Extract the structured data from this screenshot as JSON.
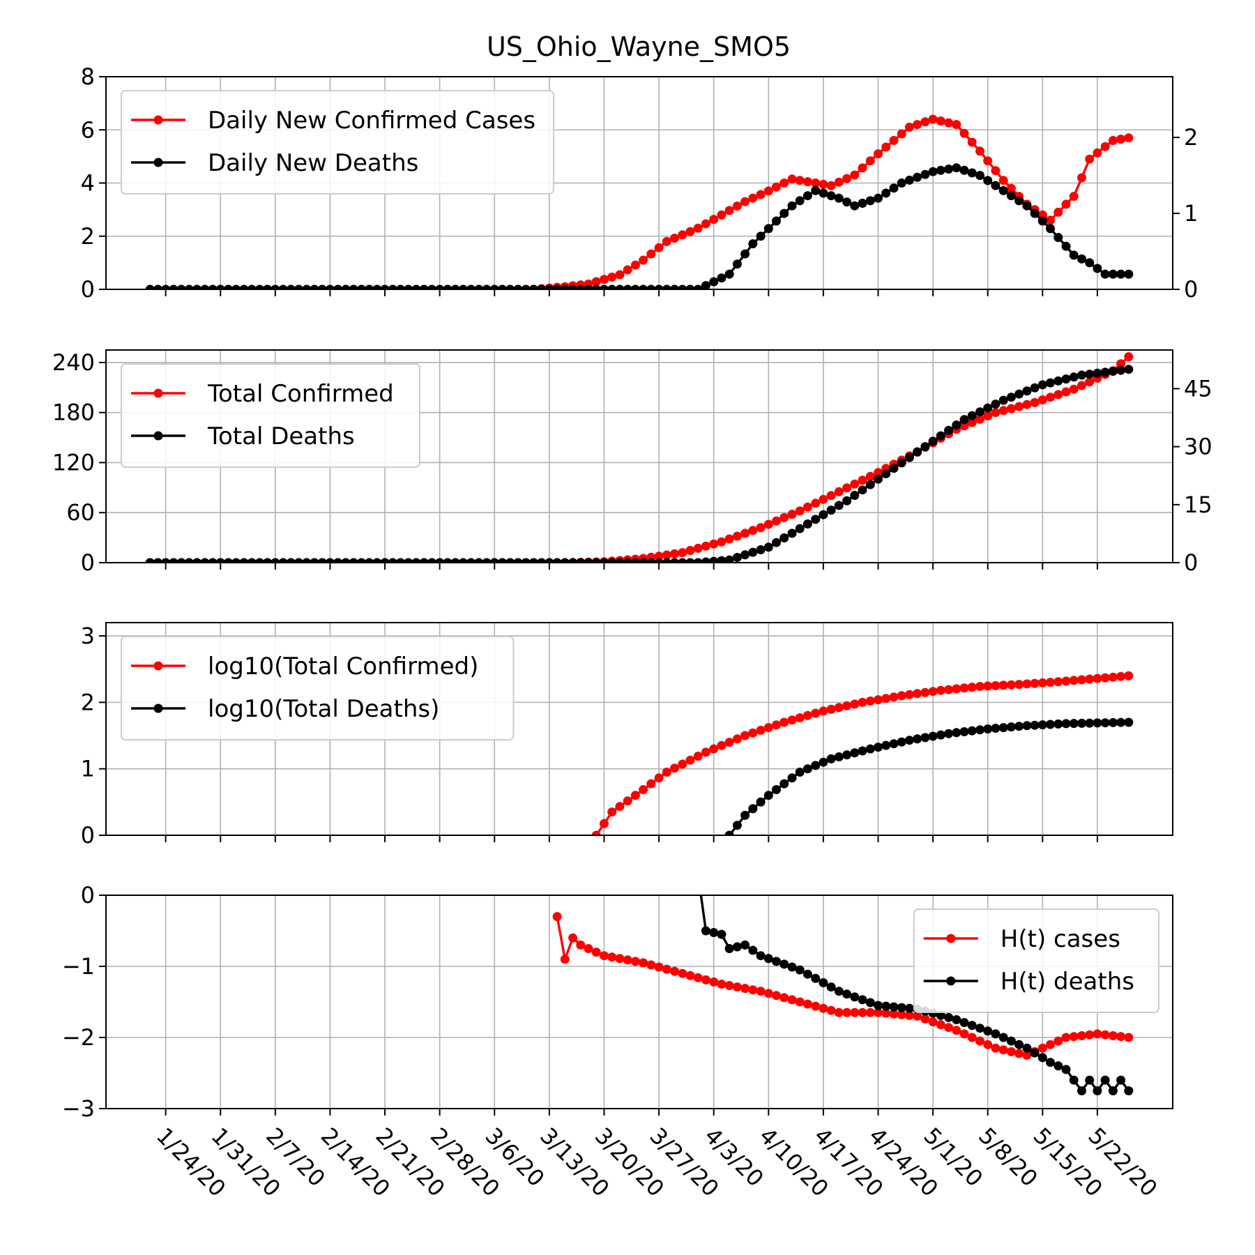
{
  "colors": {
    "cases": "#ff0000",
    "deaths": "#000000",
    "grid": "#b0b0b0"
  },
  "chart_data": {
    "title": "US_Ohio_Wayne_SMO5",
    "type": "line",
    "x_start": "1/22/20",
    "x_end": "5/26/20",
    "x_ticks": [
      "1/24/20",
      "1/31/20",
      "2/7/20",
      "2/14/20",
      "2/21/20",
      "2/28/20",
      "3/6/20",
      "3/13/20",
      "3/20/20",
      "3/27/20",
      "4/3/20",
      "4/10/20",
      "4/17/20",
      "4/24/20",
      "5/1/20",
      "5/8/20",
      "5/15/20",
      "5/22/20"
    ],
    "panels": [
      {
        "name": "daily",
        "ylim_left": [
          0,
          8
        ],
        "yticks_left": [
          0,
          2,
          4,
          6,
          8
        ],
        "ylim_right": [
          0,
          2.8
        ],
        "yticks_right": [
          0,
          1,
          2
        ],
        "legend_position": "upper-left",
        "series": [
          {
            "name": "Daily New Confirmed Cases",
            "axis": "left",
            "color": "#ff0000",
            "points": [
              [
                "3/11/20",
                0
              ],
              [
                "3/15/20",
                0.1
              ],
              [
                "3/18/20",
                0.2
              ],
              [
                "3/22/20",
                0.55
              ],
              [
                "3/25/20",
                1.1
              ],
              [
                "3/28/20",
                1.8
              ],
              [
                "4/1/20",
                2.3
              ],
              [
                "4/4/20",
                2.8
              ],
              [
                "4/7/20",
                3.3
              ],
              [
                "4/10/20",
                3.7
              ],
              [
                "4/13/20",
                4.15
              ],
              [
                "4/16/20",
                4.0
              ],
              [
                "4/18/20",
                3.9
              ],
              [
                "4/21/20",
                4.3
              ],
              [
                "4/24/20",
                5.1
              ],
              [
                "4/28/20",
                6.1
              ],
              [
                "5/1/20",
                6.4
              ],
              [
                "5/4/20",
                6.2
              ],
              [
                "5/7/20",
                5.2
              ],
              [
                "5/10/20",
                4.1
              ],
              [
                "5/13/20",
                3.2
              ],
              [
                "5/16/20",
                2.6
              ],
              [
                "5/19/20",
                3.5
              ],
              [
                "5/21/20",
                4.9
              ],
              [
                "5/24/20",
                5.6
              ],
              [
                "5/26/20",
                5.7
              ]
            ]
          },
          {
            "name": "Daily New Deaths",
            "axis": "right",
            "color": "#000000",
            "points": [
              [
                "1/22/20",
                0
              ],
              [
                "4/1/20",
                0
              ],
              [
                "4/3/20",
                0.1
              ],
              [
                "4/5/20",
                0.2
              ],
              [
                "4/8/20",
                0.6
              ],
              [
                "4/10/20",
                0.8
              ],
              [
                "4/13/20",
                1.1
              ],
              [
                "4/16/20",
                1.3
              ],
              [
                "4/19/20",
                1.2
              ],
              [
                "4/21/20",
                1.1
              ],
              [
                "4/24/20",
                1.2
              ],
              [
                "4/27/20",
                1.4
              ],
              [
                "5/1/20",
                1.55
              ],
              [
                "5/4/20",
                1.6
              ],
              [
                "5/7/20",
                1.5
              ],
              [
                "5/10/20",
                1.3
              ],
              [
                "5/13/20",
                1.1
              ],
              [
                "5/16/20",
                0.8
              ],
              [
                "5/19/20",
                0.45
              ],
              [
                "5/21/20",
                0.35
              ],
              [
                "5/23/20",
                0.2
              ],
              [
                "5/26/20",
                0.2
              ]
            ]
          }
        ]
      },
      {
        "name": "totals",
        "ylim_left": [
          0,
          255
        ],
        "yticks_left": [
          0,
          60,
          120,
          180,
          240
        ],
        "ylim_right": [
          0,
          55
        ],
        "yticks_right": [
          0,
          15,
          30,
          45
        ],
        "legend_position": "upper-left",
        "series": [
          {
            "name": "Total Confirmed",
            "axis": "left",
            "color": "#ff0000",
            "points": [
              [
                "1/22/20",
                0
              ],
              [
                "3/15/20",
                0
              ],
              [
                "3/20/20",
                1
              ],
              [
                "3/25/20",
                5
              ],
              [
                "3/30/20",
                12
              ],
              [
                "4/4/20",
                25
              ],
              [
                "4/9/20",
                42
              ],
              [
                "4/14/20",
                62
              ],
              [
                "4/19/20",
                85
              ],
              [
                "4/24/20",
                108
              ],
              [
                "4/29/20",
                133
              ],
              [
                "5/4/20",
                160
              ],
              [
                "5/9/20",
                180
              ],
              [
                "5/14/20",
                192
              ],
              [
                "5/19/20",
                208
              ],
              [
                "5/24/20",
                230
              ],
              [
                "5/26/20",
                247
              ]
            ]
          },
          {
            "name": "Total Deaths",
            "axis": "right",
            "color": "#000000",
            "points": [
              [
                "1/22/20",
                0
              ],
              [
                "4/1/20",
                0
              ],
              [
                "4/5/20",
                0.7
              ],
              [
                "4/10/20",
                4
              ],
              [
                "4/15/20",
                10
              ],
              [
                "4/20/20",
                16
              ],
              [
                "4/25/20",
                23
              ],
              [
                "4/30/20",
                30
              ],
              [
                "5/5/20",
                37
              ],
              [
                "5/10/20",
                42
              ],
              [
                "5/15/20",
                46
              ],
              [
                "5/20/20",
                48.5
              ],
              [
                "5/26/20",
                50
              ]
            ]
          }
        ]
      },
      {
        "name": "log",
        "ylim_left": [
          0,
          3.2
        ],
        "yticks_left": [
          0,
          1,
          2,
          3
        ],
        "legend_position": "upper-left",
        "series": [
          {
            "name": "log10(Total Confirmed)",
            "axis": "left",
            "color": "#ff0000",
            "points": [
              [
                "3/19/20",
                0
              ],
              [
                "3/21/20",
                0.35
              ],
              [
                "3/24/20",
                0.6
              ],
              [
                "3/28/20",
                0.95
              ],
              [
                "4/2/20",
                1.25
              ],
              [
                "4/7/20",
                1.5
              ],
              [
                "4/12/20",
                1.7
              ],
              [
                "4/17/20",
                1.87
              ],
              [
                "4/22/20",
                2.0
              ],
              [
                "4/27/20",
                2.1
              ],
              [
                "5/2/20",
                2.18
              ],
              [
                "5/7/20",
                2.24
              ],
              [
                "5/12/20",
                2.27
              ],
              [
                "5/17/20",
                2.31
              ],
              [
                "5/22/20",
                2.36
              ],
              [
                "5/26/20",
                2.4
              ]
            ]
          },
          {
            "name": "log10(Total Deaths)",
            "axis": "left",
            "color": "#000000",
            "points": [
              [
                "4/5/20",
                0
              ],
              [
                "4/7/20",
                0.3
              ],
              [
                "4/10/20",
                0.6
              ],
              [
                "4/14/20",
                0.95
              ],
              [
                "4/18/20",
                1.15
              ],
              [
                "4/23/20",
                1.3
              ],
              [
                "4/28/20",
                1.43
              ],
              [
                "5/3/20",
                1.53
              ],
              [
                "5/8/20",
                1.6
              ],
              [
                "5/13/20",
                1.65
              ],
              [
                "5/18/20",
                1.68
              ],
              [
                "5/26/20",
                1.7
              ]
            ]
          }
        ]
      },
      {
        "name": "hurst",
        "ylim_left": [
          -3,
          0
        ],
        "yticks_left": [
          -3,
          -2,
          -1,
          0
        ],
        "legend_position": "upper-right",
        "series": [
          {
            "name": "H(t) cases",
            "axis": "left",
            "color": "#ff0000",
            "points": [
              [
                "3/14/20",
                -0.3
              ],
              [
                "3/15/20",
                -0.9
              ],
              [
                "3/16/20",
                -0.6
              ],
              [
                "3/17/20",
                -0.7
              ],
              [
                "3/20/20",
                -0.85
              ],
              [
                "3/25/20",
                -0.95
              ],
              [
                "3/30/20",
                -1.1
              ],
              [
                "4/4/20",
                -1.25
              ],
              [
                "4/9/20",
                -1.35
              ],
              [
                "4/14/20",
                -1.5
              ],
              [
                "4/19/20",
                -1.65
              ],
              [
                "4/24/20",
                -1.65
              ],
              [
                "4/29/20",
                -1.7
              ],
              [
                "5/4/20",
                -1.9
              ],
              [
                "5/9/20",
                -2.15
              ],
              [
                "5/13/20",
                -2.25
              ],
              [
                "5/15/20",
                -2.15
              ],
              [
                "5/18/20",
                -2.0
              ],
              [
                "5/22/20",
                -1.95
              ],
              [
                "5/26/20",
                -2.0
              ]
            ]
          },
          {
            "name": "H(t) deaths",
            "axis": "left",
            "color": "#000000",
            "points": [
              [
                "4/1/20",
                0.3
              ],
              [
                "4/2/20",
                -0.5
              ],
              [
                "4/4/20",
                -0.55
              ],
              [
                "4/5/20",
                -0.75
              ],
              [
                "4/7/20",
                -0.7
              ],
              [
                "4/9/20",
                -0.85
              ],
              [
                "4/14/20",
                -1.05
              ],
              [
                "4/19/20",
                -1.35
              ],
              [
                "4/24/20",
                -1.55
              ],
              [
                "4/29/20",
                -1.6
              ],
              [
                "5/4/20",
                -1.75
              ],
              [
                "5/9/20",
                -1.95
              ],
              [
                "5/13/20",
                -2.15
              ],
              [
                "5/16/20",
                -2.35
              ],
              [
                "5/18/20",
                -2.45
              ],
              [
                "5/20/20",
                -2.75
              ],
              [
                "5/21/20",
                -2.6
              ],
              [
                "5/22/20",
                -2.75
              ],
              [
                "5/23/20",
                -2.6
              ],
              [
                "5/24/20",
                -2.75
              ],
              [
                "5/25/20",
                -2.6
              ],
              [
                "5/26/20",
                -2.75
              ]
            ]
          }
        ]
      }
    ]
  }
}
